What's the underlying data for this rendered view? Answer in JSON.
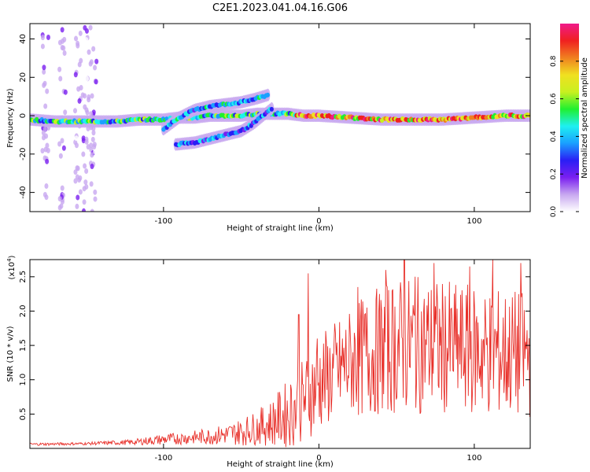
{
  "figure": {
    "title": "C2E1.2023.041.04.16.G06"
  },
  "colors": {
    "snr_line": "#e8302a",
    "axis": "#000000",
    "colormap": [
      "#ffffff",
      "#c8a8f0",
      "#7a1ff0",
      "#2a1ff5",
      "#1aa0ff",
      "#1ef0f0",
      "#20f030",
      "#c8f020",
      "#f0e020",
      "#f08020",
      "#f02020",
      "#f01a8a"
    ]
  },
  "chart_data": [
    {
      "type": "heatmap",
      "title": "C2E1.2023.041.04.16.G06",
      "xlabel": "Height of straight line (km)",
      "ylabel": "Frequency (Hz)",
      "xlim": [
        -186,
        136
      ],
      "ylim": [
        -50,
        48
      ],
      "xticks": [
        -100,
        0,
        100
      ],
      "xtick_labels": [
        "-100",
        "0",
        "100"
      ],
      "yticks": [
        -40,
        -20,
        0,
        20,
        40
      ],
      "ytick_labels": [
        "-40",
        "-20",
        "0",
        "20",
        "40"
      ],
      "colorbar": {
        "label": "Normalized spectral amplitude",
        "range": [
          0,
          1
        ],
        "ticks": [
          0.0,
          0.2,
          0.4,
          0.6,
          0.8
        ],
        "tick_labels": [
          "0.0",
          "0.2",
          "0.4",
          "0.6",
          "0.8"
        ]
      },
      "traces": [
        {
          "points": [
            [
              -186,
              -2
            ],
            [
              -170,
              -3
            ],
            [
              -150,
              -3
            ],
            [
              -130,
              -3
            ],
            [
              -115,
              -2
            ],
            [
              -100,
              -2
            ],
            [
              -90,
              -1
            ],
            [
              -80,
              -1
            ],
            [
              -70,
              0
            ],
            [
              -60,
              0
            ],
            [
              -50,
              0
            ],
            [
              -40,
              1
            ],
            [
              -30,
              1
            ],
            [
              -20,
              1
            ],
            [
              -10,
              0
            ],
            [
              0,
              0
            ],
            [
              20,
              -1
            ],
            [
              40,
              -2
            ],
            [
              60,
              -2
            ],
            [
              80,
              -2
            ],
            [
              100,
              -1
            ],
            [
              120,
              0
            ],
            [
              136,
              0
            ]
          ],
          "amplitude": 0.55
        },
        {
          "points": [
            [
              -100,
              -7
            ],
            [
              -90,
              -1
            ],
            [
              -80,
              3
            ],
            [
              -70,
              5
            ],
            [
              -60,
              6
            ],
            [
              -50,
              7
            ],
            [
              -40,
              9
            ],
            [
              -32,
              11
            ]
          ],
          "amplitude": 0.45
        },
        {
          "points": [
            [
              -92,
              -15
            ],
            [
              -80,
              -14
            ],
            [
              -70,
              -12
            ],
            [
              -60,
              -10
            ],
            [
              -50,
              -8
            ],
            [
              -42,
              -4
            ],
            [
              -36,
              0
            ],
            [
              -30,
              4
            ]
          ],
          "amplitude": 0.4
        }
      ],
      "grid": false
    },
    {
      "type": "line",
      "xlabel": "Height of straight line (km)",
      "ylabel": "SNR (10 * v/v)",
      "y_multiplier": "(x10",
      "y_multiplier_exp": "4",
      "y_multiplier_close": ")",
      "xlim": [
        -186,
        136
      ],
      "ylim": [
        0,
        2.75
      ],
      "xticks": [
        -100,
        0,
        100
      ],
      "xtick_labels": [
        "-100",
        "0",
        "100"
      ],
      "yticks": [
        0.5,
        1.0,
        1.5,
        2.0,
        2.5
      ],
      "ytick_labels": [
        "0.5",
        "1.0",
        "1.5",
        "2.0",
        "2.5"
      ],
      "envelope": {
        "x": [
          -186,
          -150,
          -120,
          -100,
          -80,
          -60,
          -50,
          -40,
          -30,
          -20,
          -10,
          0,
          10,
          20,
          30,
          50,
          70,
          90,
          110,
          136
        ],
        "mean": [
          0.06,
          0.07,
          0.09,
          0.13,
          0.16,
          0.2,
          0.24,
          0.3,
          0.38,
          0.5,
          0.7,
          0.95,
          1.1,
          1.25,
          1.35,
          1.5,
          1.5,
          1.45,
          1.4,
          1.35
        ],
        "spread": [
          0.02,
          0.02,
          0.04,
          0.08,
          0.1,
          0.15,
          0.2,
          0.25,
          0.35,
          0.5,
          0.6,
          0.7,
          0.75,
          0.8,
          0.9,
          1.0,
          1.0,
          0.95,
          0.95,
          0.95
        ]
      },
      "peaks": [
        [
          -7,
          2.55
        ],
        [
          -13,
          1.95
        ],
        [
          -1,
          1.6
        ],
        [
          43,
          2.6
        ],
        [
          55,
          2.75
        ],
        [
          74,
          2.7
        ],
        [
          97,
          2.65
        ],
        [
          112,
          2.75
        ],
        [
          130,
          2.7
        ],
        [
          25,
          2.35
        ],
        [
          62,
          2.5
        ]
      ],
      "grid": false
    }
  ]
}
